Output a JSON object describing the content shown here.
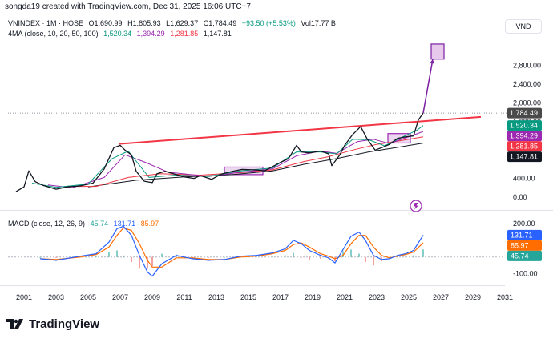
{
  "header": {
    "credit": "songda19 created with TradingView.com, Dec 31, 2025 16:06 UTC+7",
    "symbol": "VNINDEX · 1M · HOSE",
    "ohlc": [
      "O1,690.99",
      "H1,805.93",
      "L1,629.37",
      "C1,784.49",
      "+93.50 (+5.53%)",
      "Vol17.77 B"
    ],
    "ma_label": "4MA (close, 10, 20, 50, 100)",
    "ma_values": [
      "1,520.34",
      "1,394.29",
      "1,281.85",
      "1,147.81"
    ],
    "currency": "VND"
  },
  "macd_header": {
    "label": "MACD (close, 12, 26, 9)",
    "values": [
      "45.74",
      "131.71",
      "85.97"
    ]
  },
  "colors": {
    "price": "#131722",
    "ma10": "#089981",
    "ma20": "#9c27b0",
    "ma50": "#f23645",
    "ma100": "#131722",
    "macd": "#2962ff",
    "signal": "#ff6d00",
    "hist_pos": "#26a69a",
    "hist_neg": "#ef5350",
    "trendline": "#f23645",
    "projection": "#7b1fa2",
    "grid_text": "#131722"
  },
  "price_axis_labels": [
    "2,800.00",
    "2,400.00",
    "2,000.00",
    "1,600.00",
    "800.00",
    "400.00",
    "0.00"
  ],
  "macd_axis_labels": [
    "200.00",
    "100.00",
    "0.00",
    "-100.00"
  ],
  "price_badges": [
    "1,784.49",
    "1,520.34",
    "1,394.29",
    "1,281.85",
    "1,147.81"
  ],
  "macd_badges": [
    "131.71",
    "85.97",
    "45.74"
  ],
  "x_axis_labels": [
    "2001",
    "2003",
    "2005",
    "2007",
    "2009",
    "2011",
    "2013",
    "2015",
    "2017",
    "2019",
    "2021",
    "2023",
    "2025",
    "2027",
    "2029",
    "2031"
  ],
  "chart_data": {
    "type": "line",
    "panes": [
      "price",
      "macd"
    ],
    "x_range": [
      2000.0,
      2031.0
    ],
    "price_ylim": [
      -100,
      3300
    ],
    "macd_ylim": [
      -150,
      220
    ],
    "price_series": {
      "x": [
        2000.5,
        2001.0,
        2001.3,
        2001.7,
        2002.2,
        2003.0,
        2003.7,
        2004.5,
        2005.3,
        2006.0,
        2006.6,
        2007.0,
        2007.3,
        2007.7,
        2008.0,
        2008.5,
        2009.0,
        2009.3,
        2009.8,
        2010.5,
        2011.0,
        2011.6,
        2012.0,
        2012.7,
        2013.3,
        2014.0,
        2014.6,
        2015.5,
        2016.0,
        2016.5,
        2017.0,
        2017.5,
        2018.0,
        2018.3,
        2018.8,
        2019.5,
        2020.0,
        2020.2,
        2020.7,
        2021.0,
        2021.5,
        2022.0,
        2022.4,
        2022.9,
        2023.3,
        2023.8,
        2024.3,
        2024.8,
        2025.3,
        2025.6,
        2025.9
      ],
      "values": [
        120,
        220,
        560,
        330,
        250,
        170,
        220,
        240,
        300,
        600,
        1050,
        1100,
        1000,
        900,
        550,
        340,
        310,
        500,
        550,
        480,
        430,
        400,
        460,
        380,
        490,
        550,
        590,
        580,
        560,
        650,
        740,
        820,
        1100,
        960,
        940,
        980,
        920,
        670,
        900,
        1100,
        1330,
        1500,
        1240,
        1000,
        1050,
        1120,
        1250,
        1280,
        1300,
        1640,
        1784.49
      ]
    },
    "ma_series": [
      {
        "name": "10",
        "color": "#089981",
        "x": [
          2001.5,
          2003.0,
          2005.0,
          2006.5,
          2007.5,
          2008.8,
          2010.5,
          2012.5,
          2014.5,
          2016.5,
          2018.0,
          2019.5,
          2020.5,
          2021.5,
          2022.5,
          2023.5,
          2024.5,
          2025.5,
          2025.9
        ],
        "values": [
          300,
          210,
          280,
          820,
          980,
          420,
          470,
          440,
          560,
          620,
          960,
          960,
          920,
          1230,
          1220,
          1090,
          1260,
          1420,
          1520.34
        ]
      },
      {
        "name": "20",
        "color": "#9c27b0",
        "x": [
          2002.5,
          2004.0,
          2006.0,
          2007.3,
          2008.5,
          2010.0,
          2012.5,
          2014.5,
          2016.5,
          2018.0,
          2019.5,
          2020.5,
          2021.8,
          2022.8,
          2023.8,
          2024.8,
          2025.9
        ],
        "values": [
          260,
          200,
          420,
          900,
          750,
          530,
          440,
          530,
          600,
          880,
          980,
          930,
          1180,
          1230,
          1140,
          1260,
          1394.29
        ]
      },
      {
        "name": "50",
        "color": "#f23645",
        "x": [
          2003.5,
          2005.5,
          2007.5,
          2009.5,
          2012.0,
          2014.5,
          2016.5,
          2018.5,
          2020.0,
          2021.5,
          2023.0,
          2024.5,
          2025.9
        ],
        "values": [
          230,
          230,
          420,
          500,
          470,
          520,
          580,
          760,
          860,
          1000,
          1120,
          1200,
          1281.85
        ]
      },
      {
        "name": "100",
        "color": "#131722",
        "x": [
          2005.0,
          2008.0,
          2011.0,
          2014.0,
          2016.5,
          2018.5,
          2020.5,
          2022.5,
          2024.5,
          2025.9
        ],
        "values": [
          220,
          360,
          430,
          480,
          560,
          700,
          820,
          960,
          1070,
          1147.81
        ]
      }
    ],
    "annotations": {
      "trendline": {
        "x": [
          2006.9,
          2029.5
        ],
        "values": [
          1130,
          1705
        ]
      },
      "consolidation_boxes": [
        {
          "x": [
            2013.5,
            2015.9
          ],
          "values": [
            480,
            640
          ]
        },
        {
          "x": [
            2023.7,
            2025.1
          ],
          "values": [
            1150,
            1350
          ]
        }
      ],
      "projection": {
        "x": [
          2025.9,
          2026.5
        ],
        "values": [
          1784.49,
          2930
        ]
      },
      "target_box": {
        "x": [
          2026.4,
          2027.2
        ],
        "values": [
          2930,
          3250
        ]
      },
      "dashed_close_level": 1784.49
    },
    "macd": {
      "x": [
        2002.0,
        2003.0,
        2004.5,
        2005.5,
        2006.3,
        2006.8,
        2007.2,
        2007.7,
        2008.2,
        2008.7,
        2009.0,
        2009.6,
        2010.5,
        2011.5,
        2012.5,
        2013.5,
        2014.5,
        2015.5,
        2016.5,
        2017.3,
        2017.8,
        2018.3,
        2018.8,
        2019.5,
        2020.0,
        2020.4,
        2020.9,
        2021.4,
        2021.9,
        2022.3,
        2022.8,
        2023.3,
        2023.8,
        2024.3,
        2024.8,
        2025.3,
        2025.9
      ],
      "macd": [
        -10,
        -20,
        5,
        20,
        90,
        170,
        185,
        130,
        10,
        -90,
        -115,
        -40,
        10,
        -10,
        -20,
        -15,
        5,
        10,
        25,
        50,
        100,
        80,
        40,
        10,
        -5,
        -35,
        45,
        125,
        150,
        100,
        10,
        -15,
        -10,
        10,
        20,
        40,
        131.71
      ],
      "signal": [
        -10,
        -15,
        0,
        15,
        60,
        130,
        175,
        160,
        80,
        -20,
        -60,
        -60,
        -5,
        -5,
        -15,
        -15,
        0,
        5,
        20,
        40,
        75,
        85,
        60,
        20,
        5,
        -10,
        10,
        80,
        130,
        130,
        60,
        10,
        -5,
        5,
        15,
        30,
        85.97
      ],
      "hist_positive": {
        "x_range": [
          2005.5,
          2007.7
        ]
      },
      "hist_negative": {
        "x_range": [
          2008.0,
          2009.8
        ]
      }
    }
  }
}
